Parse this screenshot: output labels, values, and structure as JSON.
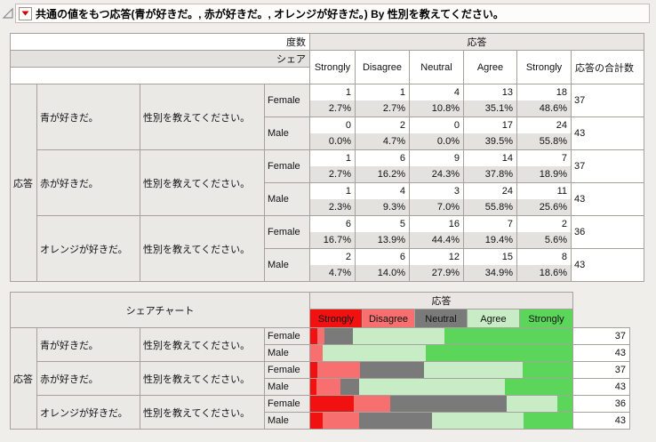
{
  "title": {
    "text": "共通の値をもつ応答(青が好きだ。, 赤が好きだ。, オレンジが好きだ。) By  性別を教えてください。"
  },
  "freq_table": {
    "corner_row1": "度数",
    "corner_row2": "シェア",
    "col_group": "応答",
    "columns": [
      "Strongly",
      "Disagree",
      "Neutral",
      "Agree",
      "Strongly",
      "応答の合計数"
    ],
    "row_group": "応答",
    "question_label": "性別を教えてください。",
    "groups": [
      {
        "label": "青が好きだ。",
        "rows": [
          {
            "gender": "Female",
            "counts": [
              "1",
              "1",
              "4",
              "13",
              "18"
            ],
            "shares": [
              "2.7%",
              "2.7%",
              "10.8%",
              "35.1%",
              "48.6%"
            ],
            "total": "37"
          },
          {
            "gender": "Male",
            "counts": [
              "0",
              "2",
              "0",
              "17",
              "24"
            ],
            "shares": [
              "0.0%",
              "4.7%",
              "0.0%",
              "39.5%",
              "55.8%"
            ],
            "total": "43"
          }
        ]
      },
      {
        "label": "赤が好きだ。",
        "rows": [
          {
            "gender": "Female",
            "counts": [
              "1",
              "6",
              "9",
              "14",
              "7"
            ],
            "shares": [
              "2.7%",
              "16.2%",
              "24.3%",
              "37.8%",
              "18.9%"
            ],
            "total": "37"
          },
          {
            "gender": "Male",
            "counts": [
              "1",
              "4",
              "3",
              "24",
              "11"
            ],
            "shares": [
              "2.3%",
              "9.3%",
              "7.0%",
              "55.8%",
              "25.6%"
            ],
            "total": "43"
          }
        ]
      },
      {
        "label": "オレンジが好きだ。",
        "rows": [
          {
            "gender": "Female",
            "counts": [
              "6",
              "5",
              "16",
              "7",
              "2"
            ],
            "shares": [
              "16.7%",
              "13.9%",
              "44.4%",
              "19.4%",
              "5.6%"
            ],
            "total": "36"
          },
          {
            "gender": "Male",
            "counts": [
              "2",
              "6",
              "12",
              "15",
              "8"
            ],
            "shares": [
              "4.7%",
              "14.0%",
              "27.9%",
              "34.9%",
              "18.6%"
            ],
            "total": "43"
          }
        ]
      }
    ]
  },
  "share_chart": {
    "title": "シェアチャート",
    "col_group": "応答",
    "row_group": "応答",
    "question_label": "性別を教えてください。",
    "legend": [
      {
        "label": "Strongly",
        "color": "#f01110"
      },
      {
        "label": "Disagree",
        "color": "#f76f6f"
      },
      {
        "label": "Neutral",
        "color": "#7a7a7a"
      },
      {
        "label": "Agree",
        "color": "#c7ecc6"
      },
      {
        "label": "Strongly",
        "color": "#5bd65b"
      }
    ],
    "groups": [
      {
        "label": "青が好きだ。",
        "rows": [
          {
            "gender": "Female",
            "values": [
              2.7,
              2.7,
              10.8,
              35.1,
              48.6
            ],
            "total": "37"
          },
          {
            "gender": "Male",
            "values": [
              0.0,
              4.7,
              0.0,
              39.5,
              55.8
            ],
            "total": "43"
          }
        ]
      },
      {
        "label": "赤が好きだ。",
        "rows": [
          {
            "gender": "Female",
            "values": [
              2.7,
              16.2,
              24.3,
              37.8,
              18.9
            ],
            "total": "37"
          },
          {
            "gender": "Male",
            "values": [
              2.3,
              9.3,
              7.0,
              55.8,
              25.6
            ],
            "total": "43"
          }
        ]
      },
      {
        "label": "オレンジが好きだ。",
        "rows": [
          {
            "gender": "Female",
            "values": [
              16.7,
              13.9,
              44.4,
              19.4,
              5.6
            ],
            "total": "36"
          },
          {
            "gender": "Male",
            "values": [
              4.7,
              14.0,
              27.9,
              34.9,
              18.6
            ],
            "total": "43"
          }
        ]
      }
    ]
  },
  "chart_data": {
    "type": "bar",
    "subtype": "horizontal-stacked-percent",
    "title": "シェアチャート",
    "categories": [
      "青が好きだ。 / Female",
      "青が好きだ。 / Male",
      "赤が好きだ。 / Female",
      "赤が好きだ。 / Male",
      "オレンジが好きだ。 / Female",
      "オレンジが好きだ。 / Male"
    ],
    "series": [
      {
        "name": "Strongly",
        "color": "#f01110",
        "values": [
          2.7,
          0.0,
          2.7,
          2.3,
          16.7,
          4.7
        ]
      },
      {
        "name": "Disagree",
        "color": "#f76f6f",
        "values": [
          2.7,
          4.7,
          16.2,
          9.3,
          13.9,
          14.0
        ]
      },
      {
        "name": "Neutral",
        "color": "#7a7a7a",
        "values": [
          10.8,
          0.0,
          24.3,
          7.0,
          44.4,
          27.9
        ]
      },
      {
        "name": "Agree",
        "color": "#c7ecc6",
        "values": [
          35.1,
          39.5,
          37.8,
          55.8,
          19.4,
          34.9
        ]
      },
      {
        "name": "Strongly",
        "color": "#5bd65b",
        "values": [
          48.6,
          55.8,
          18.9,
          25.6,
          5.6,
          18.6
        ]
      }
    ],
    "row_totals": [
      37,
      43,
      37,
      43,
      36,
      43
    ],
    "xlim": [
      0,
      100
    ],
    "legend_position": "top",
    "grid": false
  },
  "colors": {
    "page_bg": "#f0eeeb",
    "title_bg": "#fdfcfa",
    "header_gray": "#e9e6e3",
    "share_row_gray": "#e4e2de",
    "label_gray": "#ebe9e6",
    "border": "#a5a29d",
    "menu_red": "#cc0000"
  }
}
